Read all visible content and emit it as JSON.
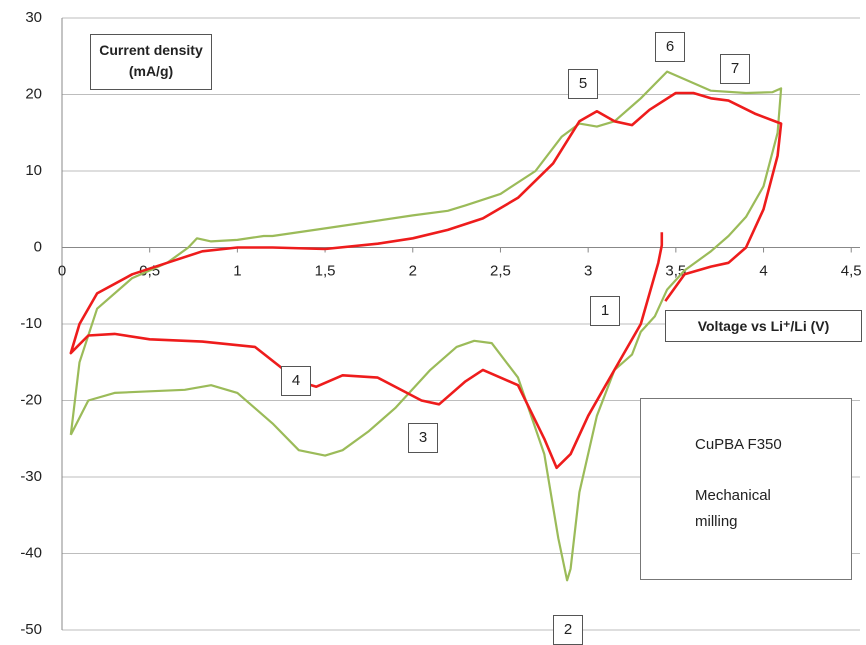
{
  "chart_data": {
    "type": "line",
    "y_title": "Current density (mA/g)",
    "x_title": "Voltage vs Li⁺/Li (V)",
    "xlim": [
      0,
      4.55
    ],
    "ylim": [
      -50,
      30
    ],
    "xticks": [
      0,
      {
        "value": 0.5,
        "label": "0,5"
      },
      1,
      {
        "value": 1.5,
        "label": "1,5"
      },
      2,
      {
        "value": 2.5,
        "label": "2,5"
      },
      3,
      {
        "value": 3.5,
        "label": "3,5"
      },
      4,
      {
        "value": 4.5,
        "label": "4,5"
      }
    ],
    "yticks": [
      -50,
      -40,
      -30,
      -20,
      -10,
      0,
      10,
      20,
      30
    ],
    "grid": true,
    "annotations": [
      "1",
      "2",
      "3",
      "4",
      "5",
      "6",
      "7"
    ],
    "series": [
      {
        "name": "CuPBA F350",
        "color": "#9bbb59",
        "x": [
          0.05,
          0.1,
          0.2,
          0.4,
          0.6,
          0.72,
          0.77,
          0.85,
          1.0,
          1.15,
          1.2,
          1.5,
          2.0,
          2.2,
          2.3,
          2.5,
          2.7,
          2.85,
          2.95,
          3.05,
          3.15,
          3.3,
          3.45,
          3.55,
          3.7,
          3.9,
          4.05,
          4.1,
          4.08,
          4.0,
          3.9,
          3.8,
          3.7,
          3.55,
          3.45,
          3.38,
          3.3,
          3.25,
          3.15,
          3.05,
          2.95,
          2.9,
          2.88,
          2.83,
          2.75,
          2.6,
          2.45,
          2.35,
          2.25,
          2.1,
          1.9,
          1.75,
          1.6,
          1.5,
          1.35,
          1.2,
          1.0,
          0.85,
          0.7,
          0.5,
          0.3,
          0.15,
          0.05
        ],
        "values": [
          -24.5,
          -15,
          -8,
          -4,
          -2,
          0,
          1.2,
          0.8,
          1,
          1.5,
          1.5,
          2.5,
          4.2,
          4.8,
          5.5,
          7,
          10,
          14.5,
          16.2,
          15.8,
          16.5,
          19.5,
          23,
          22,
          20.5,
          20.2,
          20.3,
          20.8,
          15,
          8,
          4,
          1.5,
          -0.5,
          -3,
          -5.5,
          -9,
          -11,
          -14,
          -16,
          -22,
          -32,
          -42,
          -43.5,
          -38,
          -27,
          -17,
          -12.5,
          -12.2,
          -13,
          -16,
          -21,
          -24,
          -26.5,
          -27.2,
          -26.5,
          -23,
          -19,
          -18,
          -18.6,
          -18.8,
          -19,
          -20,
          -24.5
        ]
      },
      {
        "name": "Mechanical milling",
        "color": "#ee1c1c",
        "x": [
          3.42,
          3.42,
          3.4,
          3.3,
          3.2,
          3.1,
          3.0,
          2.9,
          2.82,
          2.75,
          2.6,
          2.4,
          2.3,
          2.15,
          2.05,
          1.8,
          1.6,
          1.45,
          1.35,
          1.1,
          0.8,
          0.5,
          0.3,
          0.15,
          0.05,
          0.1,
          0.2,
          0.4,
          0.6,
          0.8,
          1.0,
          1.2,
          1.5,
          1.8,
          2.0,
          2.2,
          2.4,
          2.6,
          2.8,
          2.95,
          3.05,
          3.15,
          3.25,
          3.35,
          3.5,
          3.6,
          3.7,
          3.8,
          3.95,
          4.1,
          4.08,
          4.0,
          3.9,
          3.8,
          3.7,
          3.55,
          3.44
        ],
        "values": [
          2,
          0.3,
          -2,
          -10,
          -14,
          -18,
          -22,
          -27,
          -28.8,
          -25,
          -18,
          -16,
          -17.5,
          -20.5,
          -20,
          -17,
          -16.7,
          -18.2,
          -17.5,
          -13,
          -12.3,
          -12,
          -11.3,
          -11.5,
          -13.8,
          -10,
          -6,
          -3.5,
          -2,
          -0.5,
          0,
          0,
          -0.2,
          0.5,
          1.2,
          2.3,
          3.8,
          6.5,
          11,
          16.5,
          17.8,
          16.5,
          16,
          18,
          20.2,
          20.2,
          19.5,
          19.2,
          17.5,
          16.2,
          12,
          5,
          0,
          -2,
          -2.5,
          -3.5,
          -7
        ]
      }
    ]
  }
}
